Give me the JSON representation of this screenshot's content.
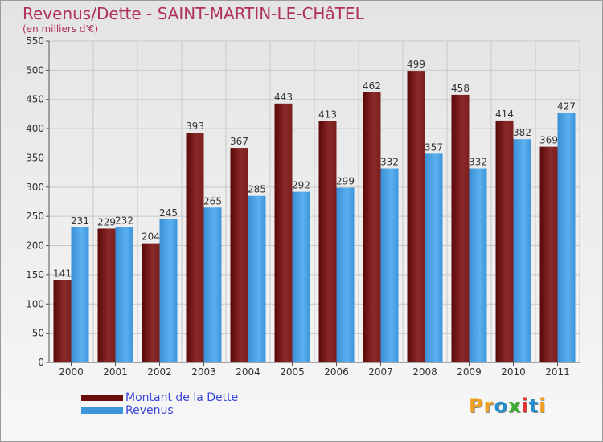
{
  "title": "Revenus/Dette - SAINT-MARTIN-LE-CHâTEL",
  "subtitle": "(en milliers d'€)",
  "colors": {
    "dette": "#7a1a1a",
    "revenus": "#3d95dc",
    "title": "#b03060",
    "legend_text": "#3a46d6"
  },
  "legend": [
    {
      "label": "Montant de la Dette",
      "color": "#6b0d0d"
    },
    {
      "label": "Revenus",
      "color": "#3d95dc"
    }
  ],
  "logo": {
    "letters": [
      "P",
      "r",
      "o",
      "x",
      "i",
      "t",
      "i"
    ],
    "colors": [
      "#f0a020",
      "#f0a020",
      "#2090d0",
      "#3cb030",
      "#e03030",
      "#2090d0",
      "#f0a020"
    ]
  },
  "chart_data": {
    "type": "bar",
    "categories": [
      "2000",
      "2001",
      "2002",
      "2003",
      "2004",
      "2005",
      "2006",
      "2007",
      "2008",
      "2009",
      "2010",
      "2011"
    ],
    "series": [
      {
        "name": "Montant de la Dette",
        "values": [
          141,
          229,
          204,
          393,
          367,
          443,
          413,
          462,
          499,
          458,
          414,
          369
        ]
      },
      {
        "name": "Revenus",
        "values": [
          231,
          232,
          245,
          265,
          285,
          292,
          299,
          332,
          357,
          332,
          382,
          427
        ]
      }
    ],
    "ylim": [
      0,
      550
    ],
    "yticks": [
      0,
      50,
      100,
      150,
      200,
      250,
      300,
      350,
      400,
      450,
      500,
      550
    ],
    "grid": true
  }
}
